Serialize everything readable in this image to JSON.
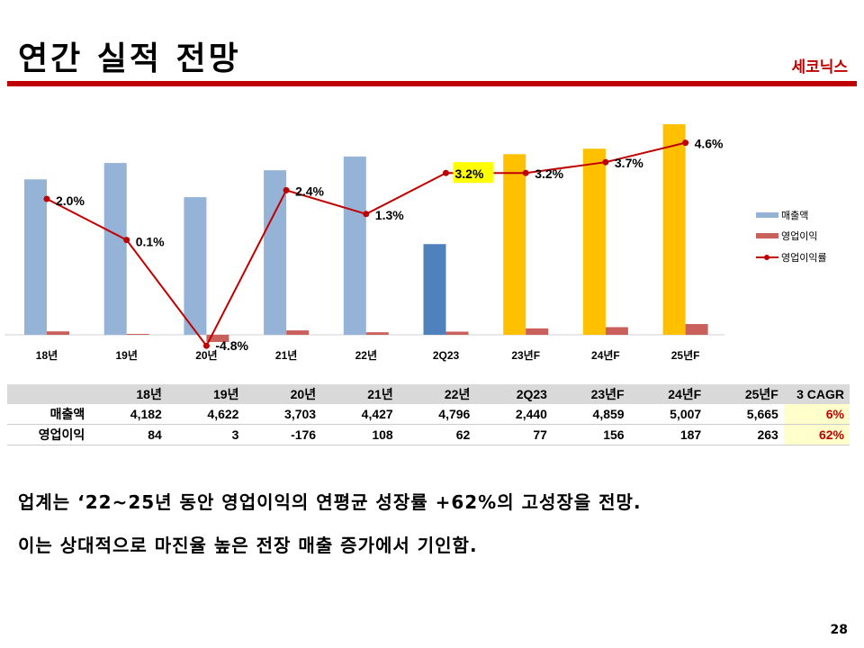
{
  "title": "연간 실적 전망",
  "company": "세코닉스",
  "chart_data": {
    "type": "bar",
    "categories": [
      "18년",
      "19년",
      "20년",
      "21년",
      "22년",
      "2Q23",
      "23년F",
      "24년F",
      "25년F"
    ],
    "series": [
      {
        "name": "매출액",
        "type": "bar",
        "values": [
          4182,
          4622,
          3703,
          4427,
          4796,
          2440,
          4859,
          5007,
          5665
        ],
        "colors": [
          "#95b3d7",
          "#95b3d7",
          "#95b3d7",
          "#95b3d7",
          "#95b3d7",
          "#4f81bd",
          "#ffc000",
          "#ffc000",
          "#ffc000"
        ]
      },
      {
        "name": "영업이익",
        "type": "bar",
        "values": [
          84,
          3,
          -176,
          108,
          62,
          77,
          156,
          187,
          263
        ],
        "color": "#c9605c"
      },
      {
        "name": "영업이익률",
        "type": "line",
        "values": [
          2.0,
          0.1,
          -4.8,
          2.4,
          1.3,
          3.2,
          3.2,
          3.7,
          4.6
        ],
        "labels": [
          "2.0%",
          "0.1%",
          "-4.8%",
          "2.4%",
          "1.3%",
          "3.2%",
          "3.2%",
          "3.7%",
          "4.6%"
        ],
        "color": "#c00000",
        "highlight_index": 5,
        "highlight_color": "#ffff00"
      }
    ],
    "legend": "right"
  },
  "table": {
    "headers": [
      "",
      "18년",
      "19년",
      "20년",
      "21년",
      "22년",
      "2Q23",
      "23년F",
      "24년F",
      "25년F",
      "3 CAGR"
    ],
    "rows": [
      [
        "매출액",
        "4,182",
        "4,622",
        "3,703",
        "4,427",
        "4,796",
        "2,440",
        "4,859",
        "5,007",
        "5,665",
        "6%"
      ],
      [
        "영업이익",
        "84",
        "3",
        "-176",
        "108",
        "62",
        "77",
        "156",
        "187",
        "263",
        "62%"
      ]
    ]
  },
  "notes": [
    "업계는 ‘22~25년 동안 영업이익의 연평균 성장률 +62%의 고성장을 전망.",
    "이는 상대적으로 마진율 높은 전장 매출 증가에서 기인함."
  ],
  "page": "28"
}
